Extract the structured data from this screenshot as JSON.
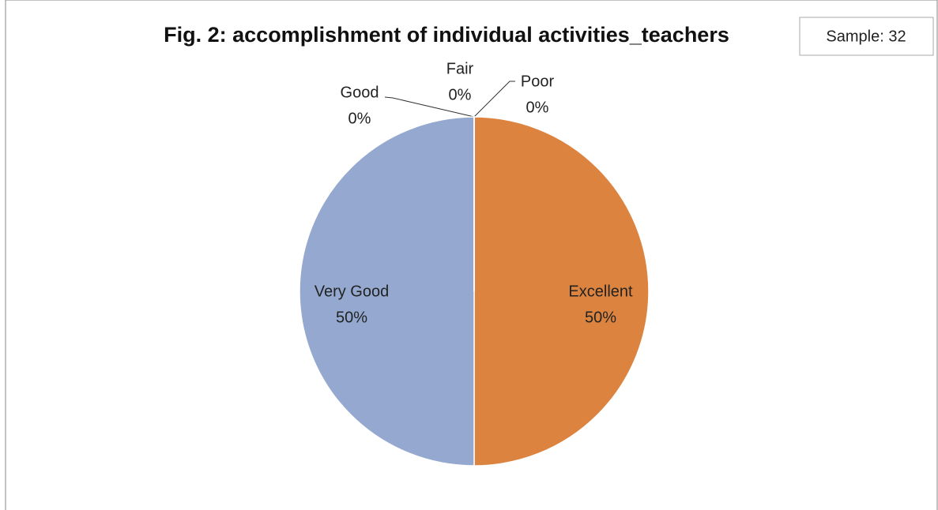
{
  "chart_data": {
    "type": "pie",
    "title": "Fig. 2: accomplishment of individual activities_teachers",
    "annotation": "Sample: 32",
    "categories": [
      "Excellent",
      "Very Good",
      "Good",
      "Fair",
      "Poor"
    ],
    "values": [
      50,
      50,
      0,
      0,
      0
    ],
    "value_labels": [
      "50%",
      "50%",
      "0%",
      "0%",
      "0%"
    ],
    "colors": [
      "#dc843f",
      "#95a9d0",
      "#a5a5a5",
      "#ffc000",
      "#5b9bd5"
    ]
  }
}
